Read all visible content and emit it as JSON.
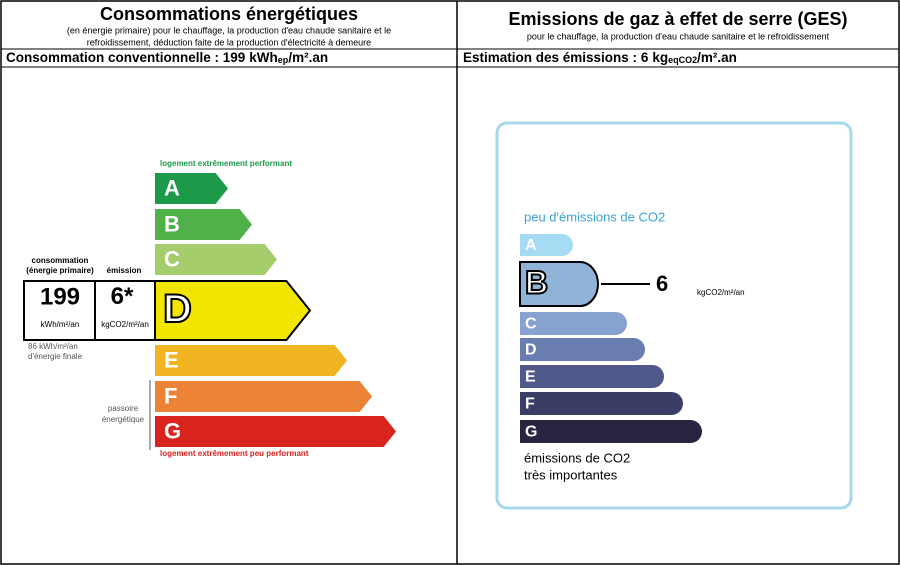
{
  "left": {
    "title": "Consommations énergétiques",
    "subtitle": [
      "(en énergie primaire) pour le chauffage, la production d'eau chaude sanitaire et le",
      "refroidissement, déduction faite de la production d'électricité à demeure"
    ],
    "summary": {
      "label": "Consommation conventionnelle : ",
      "value": 199,
      "unit": "kWh",
      "unit_sub": "ep",
      "unit_suffix": "/m².an"
    },
    "top_note": "logement extrêmement performant",
    "bottom_note": "logement extrêmement peu performant",
    "box": {
      "consumption_heading": [
        "consommation",
        "(énergie primaire)"
      ],
      "emission_heading": "émission",
      "emission_value": 6,
      "emission_mark": "*",
      "consumption_unit": "kWh/m²/an",
      "emission_unit": "kgCO2/m²/an"
    },
    "final_energy": [
      "86 kWh/m²/an",
      "d'énergie finale"
    ],
    "passoire": [
      "passoire",
      "énergétique"
    ],
    "active_class": "D",
    "classes": [
      {
        "letter": "A",
        "color": "#1c9a4a"
      },
      {
        "letter": "B",
        "color": "#50b04a"
      },
      {
        "letter": "C",
        "color": "#a5cd6b"
      },
      {
        "letter": "D",
        "color": "#f2e600"
      },
      {
        "letter": "E",
        "color": "#f0b521"
      },
      {
        "letter": "F",
        "color": "#eb8236"
      },
      {
        "letter": "G",
        "color": "#d8231f"
      }
    ]
  },
  "right": {
    "title": "Emissions de gaz à effet de serre (GES)",
    "subtitle": "pour le chauffage, la production d'eau chaude sanitaire et le refroidissement",
    "summary": {
      "label": "Estimation des émissions : ",
      "value": 6,
      "unit": "kg",
      "unit_sub": "eqCO2",
      "unit_suffix": "/m².an"
    },
    "top_note": "peu d'émissions de CO2",
    "bottom_note": [
      "émissions de CO2",
      "très importantes"
    ],
    "value_unit": "kgCO2/m²/an",
    "active_class": "B",
    "classes": [
      {
        "letter": "A",
        "color": "#a5dcf4"
      },
      {
        "letter": "B",
        "color": "#8fb4d7"
      },
      {
        "letter": "C",
        "color": "#88a2cf"
      },
      {
        "letter": "D",
        "color": "#6a7db0"
      },
      {
        "letter": "E",
        "color": "#50598a"
      },
      {
        "letter": "F",
        "color": "#3c3d66"
      },
      {
        "letter": "G",
        "color": "#2a2440"
      }
    ]
  }
}
